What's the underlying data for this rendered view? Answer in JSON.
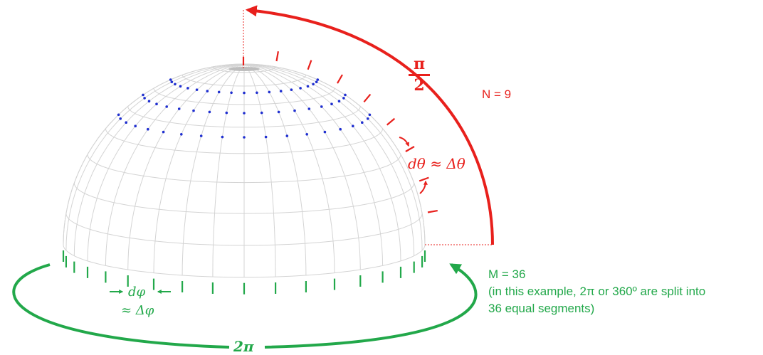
{
  "colors": {
    "red": "#e8201c",
    "green": "#22a84a",
    "blue": "#1f2fd0",
    "mesh": "#d9d9d9"
  },
  "labels": {
    "pi_numerator": "π",
    "pi_denominator": "2",
    "n_label": "N = 9",
    "dtheta_label": "dθ ≈ Δθ",
    "dphi_label": "dφ",
    "approx_dphi_label": "≈ Δφ",
    "two_pi_label": "2π",
    "m_label": "M = 36",
    "m_note_line1": "(in this example, 2π or 360º are split into",
    "m_note_line2": "36 equal segments)"
  },
  "discretization": {
    "N": 9,
    "M": 36
  }
}
